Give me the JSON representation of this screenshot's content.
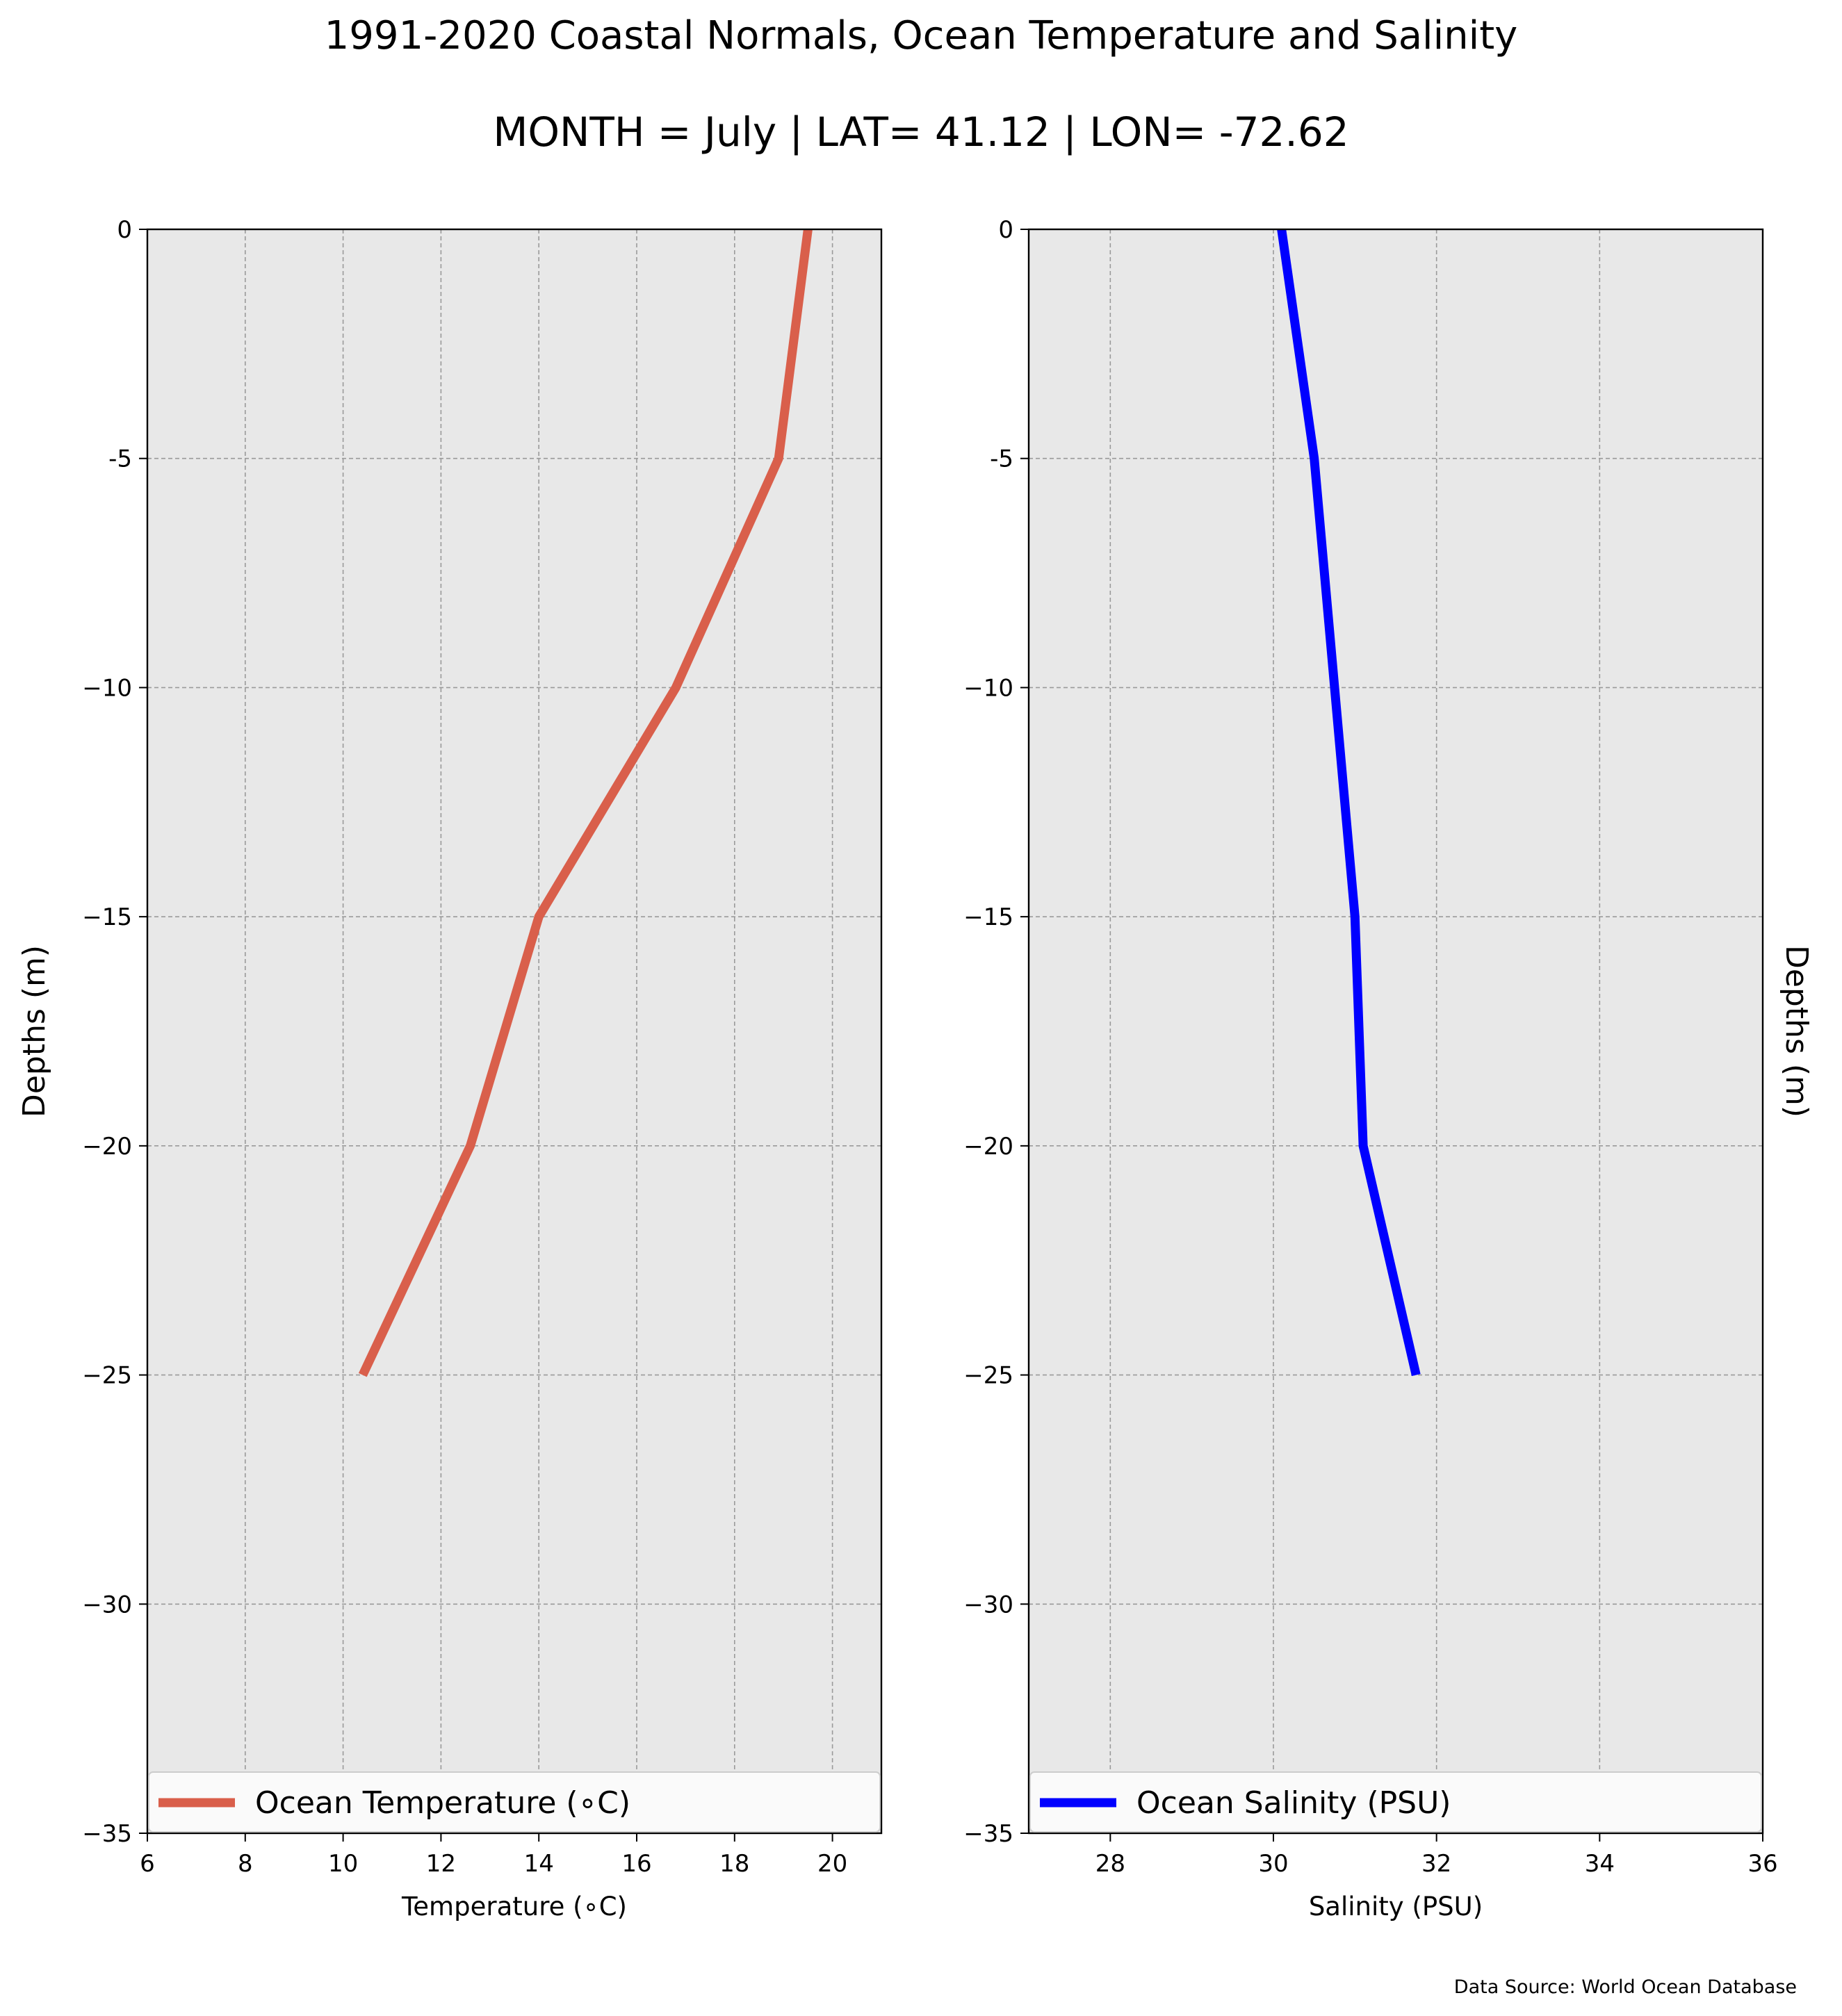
{
  "title": "1991-2020 Coastal Normals, Ocean Temperature and Salinity",
  "subtitle": "MONTH = July | LAT= 41.12 | LON= -72.62",
  "source": "Data Source: World Ocean Database",
  "chart_data": [
    {
      "type": "line",
      "xlabel": "Temperature (∘C)",
      "ylabel": "Depths (m)",
      "xlim": [
        6,
        21
      ],
      "ylim": [
        -35,
        0
      ],
      "xticks": [
        6,
        8,
        10,
        12,
        14,
        16,
        18,
        20
      ],
      "yticks": [
        0,
        -5,
        -10,
        -15,
        -20,
        -25,
        -30,
        -35
      ],
      "ytick_labels": [
        "0",
        "-5",
        "−10",
        "−15",
        "−20",
        "−25",
        "−30",
        "−35"
      ],
      "grid": true,
      "legend": "lower-center",
      "series": [
        {
          "name": "Ocean Temperature (∘C)",
          "color": "#d95f4b",
          "x": [
            19.5,
            18.9,
            16.8,
            14.0,
            12.6,
            10.4
          ],
          "y": [
            0,
            -5,
            -10,
            -15,
            -20,
            -25
          ]
        }
      ]
    },
    {
      "type": "line",
      "xlabel": "Salinity (PSU)",
      "ylabel": "Depths (m)",
      "xlim": [
        27,
        36
      ],
      "ylim": [
        -35,
        0
      ],
      "xticks": [
        28,
        30,
        32,
        34,
        36
      ],
      "yticks": [
        0,
        -5,
        -10,
        -15,
        -20,
        -25,
        -30,
        -35
      ],
      "ytick_labels": [
        "0",
        "-5",
        "−10",
        "−15",
        "−20",
        "−25",
        "−30",
        "−35"
      ],
      "grid": true,
      "legend": "lower-center",
      "series": [
        {
          "name": "Ocean Salinity (PSU)",
          "color": "#0000ff",
          "x": [
            30.1,
            30.5,
            30.75,
            31.0,
            31.1,
            31.75
          ],
          "y": [
            0,
            -5,
            -10,
            -15,
            -20,
            -25
          ]
        }
      ]
    }
  ]
}
